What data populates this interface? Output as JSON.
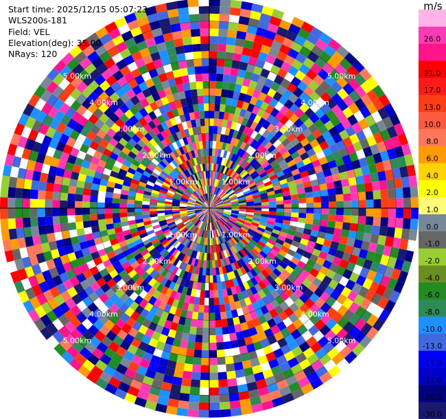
{
  "info": {
    "start_time": "Start time: 2025/12/15 05:07:23",
    "instrument": "WLS200s-181",
    "field": "Field: VEL",
    "elevation": "Elevation(deg): 35.00",
    "nrays": "NRays: 120"
  },
  "colorbar": {
    "unit": "m/s",
    "entries": [
      {
        "label": "",
        "color": "#ffb3e6"
      },
      {
        "label": "26.0",
        "color": "#ff3ab4"
      },
      {
        "label": "",
        "color": "#ff148c"
      },
      {
        "label": "21.0",
        "color": "#ff0000"
      },
      {
        "label": "17.0",
        "color": "#ff1a1a"
      },
      {
        "label": "13.0",
        "color": "#ff3c14"
      },
      {
        "label": "10.0",
        "color": "#ff5a3c"
      },
      {
        "label": "8.0",
        "color": "#ff785a"
      },
      {
        "label": "6.0",
        "color": "#ff9a00"
      },
      {
        "label": "4.0",
        "color": "#ffd200"
      },
      {
        "label": "2.0",
        "color": "#ffff00"
      },
      {
        "label": "1.0",
        "color": "#fffa78"
      },
      {
        "label": "0.0",
        "color": "#778899"
      },
      {
        "label": "-1.0",
        "color": "#666666"
      },
      {
        "label": "-2.0",
        "color": "#9acd32"
      },
      {
        "label": "-4.0",
        "color": "#6b8e23"
      },
      {
        "label": "-6.0",
        "color": "#228b22"
      },
      {
        "label": "-8.0",
        "color": "#2e8b57"
      },
      {
        "label": "-10.0",
        "color": "#1e90ff"
      },
      {
        "label": "-13.0",
        "color": "#4169e1"
      },
      {
        "label": "-17.0",
        "color": "#0000ff"
      },
      {
        "label": "-21.0",
        "color": "#0000cd"
      },
      {
        "label": "-26.0",
        "color": "#000080"
      },
      {
        "label": "-30.0",
        "color": "#191970"
      }
    ]
  },
  "chart_data": {
    "type": "heatmap",
    "projection": "polar-ppi",
    "field": "VEL",
    "nrays": 120,
    "ngates": 28,
    "max_range_km": 5.6,
    "range_rings_km": [
      1.0,
      2.0,
      3.0,
      4.0,
      5.0
    ],
    "range_ring_labels": [
      "1.00km",
      "2.00km",
      "3.00km",
      "4.00km",
      "5.00km"
    ],
    "palette": [
      "#ff3ab4",
      "#ff148c",
      "#ff0000",
      "#ff3c14",
      "#ff785a",
      "#ff9a00",
      "#ffff00",
      "#778899",
      "#666666",
      "#9acd32",
      "#228b22",
      "#2e8b57",
      "#1e90ff",
      "#4169e1",
      "#0000ff",
      "#0000cd",
      "#000080",
      "#191970",
      "#ffffff"
    ],
    "note_values": "Velocity field appears as near-random noise; per-gate values not legible."
  }
}
